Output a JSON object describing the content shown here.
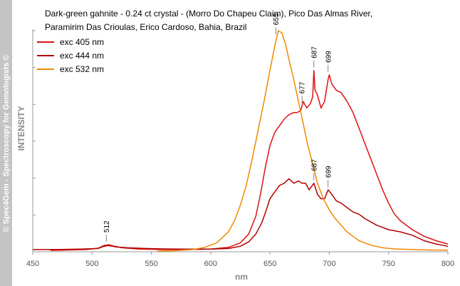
{
  "watermark": "© Spec4Gem - Spectroscopy for Gemologists ©",
  "chart_data": {
    "type": "line",
    "title_lines": [
      "Dark-green gahnite - 0.24 ct crystal - (Morro Do Chapeu Claim), Pico Das Almas River,",
      "Paramirim Das Crioulas, Erico Cardoso, Bahia, Brazil"
    ],
    "xlabel": "nm",
    "ylabel": "INTENSITY",
    "xlim": [
      450,
      800
    ],
    "ylim": [
      0,
      100
    ],
    "x_ticks": [
      "450",
      "500",
      "550",
      "600",
      "650",
      "700",
      "750",
      "800"
    ],
    "legend_position": "top-left",
    "grid": false,
    "series": [
      {
        "name": "exc 405 nm",
        "color": "#e01010",
        "points": [
          [
            465,
            0.6
          ],
          [
            480,
            0.8
          ],
          [
            495,
            1
          ],
          [
            505,
            1.6
          ],
          [
            510,
            2.8
          ],
          [
            514,
            3.2
          ],
          [
            518,
            2.6
          ],
          [
            525,
            1.8
          ],
          [
            540,
            1.2
          ],
          [
            560,
            1
          ],
          [
            580,
            1
          ],
          [
            600,
            1.2
          ],
          [
            615,
            2
          ],
          [
            625,
            4
          ],
          [
            632,
            8
          ],
          [
            638,
            16
          ],
          [
            642,
            26
          ],
          [
            646,
            38
          ],
          [
            650,
            48
          ],
          [
            654,
            54
          ],
          [
            658,
            57
          ],
          [
            662,
            60
          ],
          [
            666,
            62
          ],
          [
            670,
            63
          ],
          [
            673,
            63
          ],
          [
            676,
            64
          ],
          [
            678,
            68
          ],
          [
            681,
            65
          ],
          [
            684,
            67
          ],
          [
            686,
            70
          ],
          [
            687,
            82
          ],
          [
            688,
            73
          ],
          [
            690,
            71
          ],
          [
            693,
            65
          ],
          [
            696,
            68
          ],
          [
            699,
            78
          ],
          [
            700,
            80
          ],
          [
            702,
            76
          ],
          [
            706,
            73
          ],
          [
            710,
            72
          ],
          [
            715,
            68
          ],
          [
            720,
            63
          ],
          [
            725,
            56
          ],
          [
            730,
            49
          ],
          [
            735,
            42
          ],
          [
            740,
            35
          ],
          [
            745,
            28
          ],
          [
            750,
            22
          ],
          [
            755,
            17
          ],
          [
            760,
            14
          ],
          [
            770,
            10
          ],
          [
            780,
            7
          ],
          [
            790,
            5
          ],
          [
            800,
            3.5
          ]
        ]
      },
      {
        "name": "exc 444 nm",
        "color": "#b00000",
        "points": [
          [
            450,
            1
          ],
          [
            470,
            1
          ],
          [
            490,
            1.2
          ],
          [
            505,
            1.5
          ],
          [
            510,
            2.5
          ],
          [
            514,
            2.8
          ],
          [
            520,
            2.2
          ],
          [
            530,
            1.8
          ],
          [
            545,
            1.5
          ],
          [
            560,
            1.3
          ],
          [
            580,
            1.2
          ],
          [
            600,
            1.2
          ],
          [
            615,
            1.5
          ],
          [
            625,
            2.5
          ],
          [
            632,
            4.5
          ],
          [
            638,
            8
          ],
          [
            643,
            13
          ],
          [
            647,
            19
          ],
          [
            650,
            24
          ],
          [
            654,
            27
          ],
          [
            658,
            30
          ],
          [
            662,
            31
          ],
          [
            666,
            33
          ],
          [
            670,
            31
          ],
          [
            674,
            32
          ],
          [
            677,
            31
          ],
          [
            680,
            31
          ],
          [
            683,
            28
          ],
          [
            687,
            31
          ],
          [
            690,
            26
          ],
          [
            693,
            24
          ],
          [
            696,
            24
          ],
          [
            699,
            28
          ],
          [
            702,
            26
          ],
          [
            706,
            23
          ],
          [
            710,
            22
          ],
          [
            715,
            20
          ],
          [
            720,
            18
          ],
          [
            725,
            17
          ],
          [
            730,
            15
          ],
          [
            740,
            12
          ],
          [
            750,
            10
          ],
          [
            760,
            9
          ],
          [
            770,
            7.5
          ],
          [
            780,
            5
          ],
          [
            790,
            3.5
          ],
          [
            800,
            2.5
          ]
        ]
      },
      {
        "name": "exc 532 nm",
        "color": "#f08a00",
        "points": [
          [
            555,
            0.3
          ],
          [
            570,
            0.5
          ],
          [
            585,
            1
          ],
          [
            595,
            2
          ],
          [
            605,
            4
          ],
          [
            615,
            9
          ],
          [
            620,
            14
          ],
          [
            625,
            21
          ],
          [
            630,
            30
          ],
          [
            635,
            42
          ],
          [
            640,
            55
          ],
          [
            645,
            68
          ],
          [
            650,
            82
          ],
          [
            654,
            93
          ],
          [
            657,
            100
          ],
          [
            660,
            99
          ],
          [
            663,
            94
          ],
          [
            666,
            87
          ],
          [
            670,
            78
          ],
          [
            674,
            68
          ],
          [
            678,
            58
          ],
          [
            682,
            48
          ],
          [
            686,
            40
          ],
          [
            690,
            31
          ],
          [
            695,
            24
          ],
          [
            700,
            19
          ],
          [
            705,
            15
          ],
          [
            710,
            12
          ],
          [
            715,
            9
          ],
          [
            720,
            7
          ],
          [
            725,
            5
          ],
          [
            735,
            3
          ],
          [
            745,
            1.8
          ],
          [
            755,
            1.3
          ],
          [
            770,
            1
          ],
          [
            785,
            0.8
          ],
          [
            800,
            0.7
          ]
        ]
      }
    ],
    "annotations": [
      {
        "label": "512",
        "x": 512,
        "y": 3.2
      },
      {
        "label": "655",
        "x": 655,
        "y": 97
      },
      {
        "label": "677",
        "x": 677,
        "y": 66
      },
      {
        "label": "687",
        "x": 687,
        "y": 82
      },
      {
        "label": "699",
        "x": 699,
        "y": 80
      },
      {
        "label": "687",
        "x": 687,
        "y": 31
      },
      {
        "label": "699",
        "x": 699,
        "y": 28
      }
    ]
  }
}
